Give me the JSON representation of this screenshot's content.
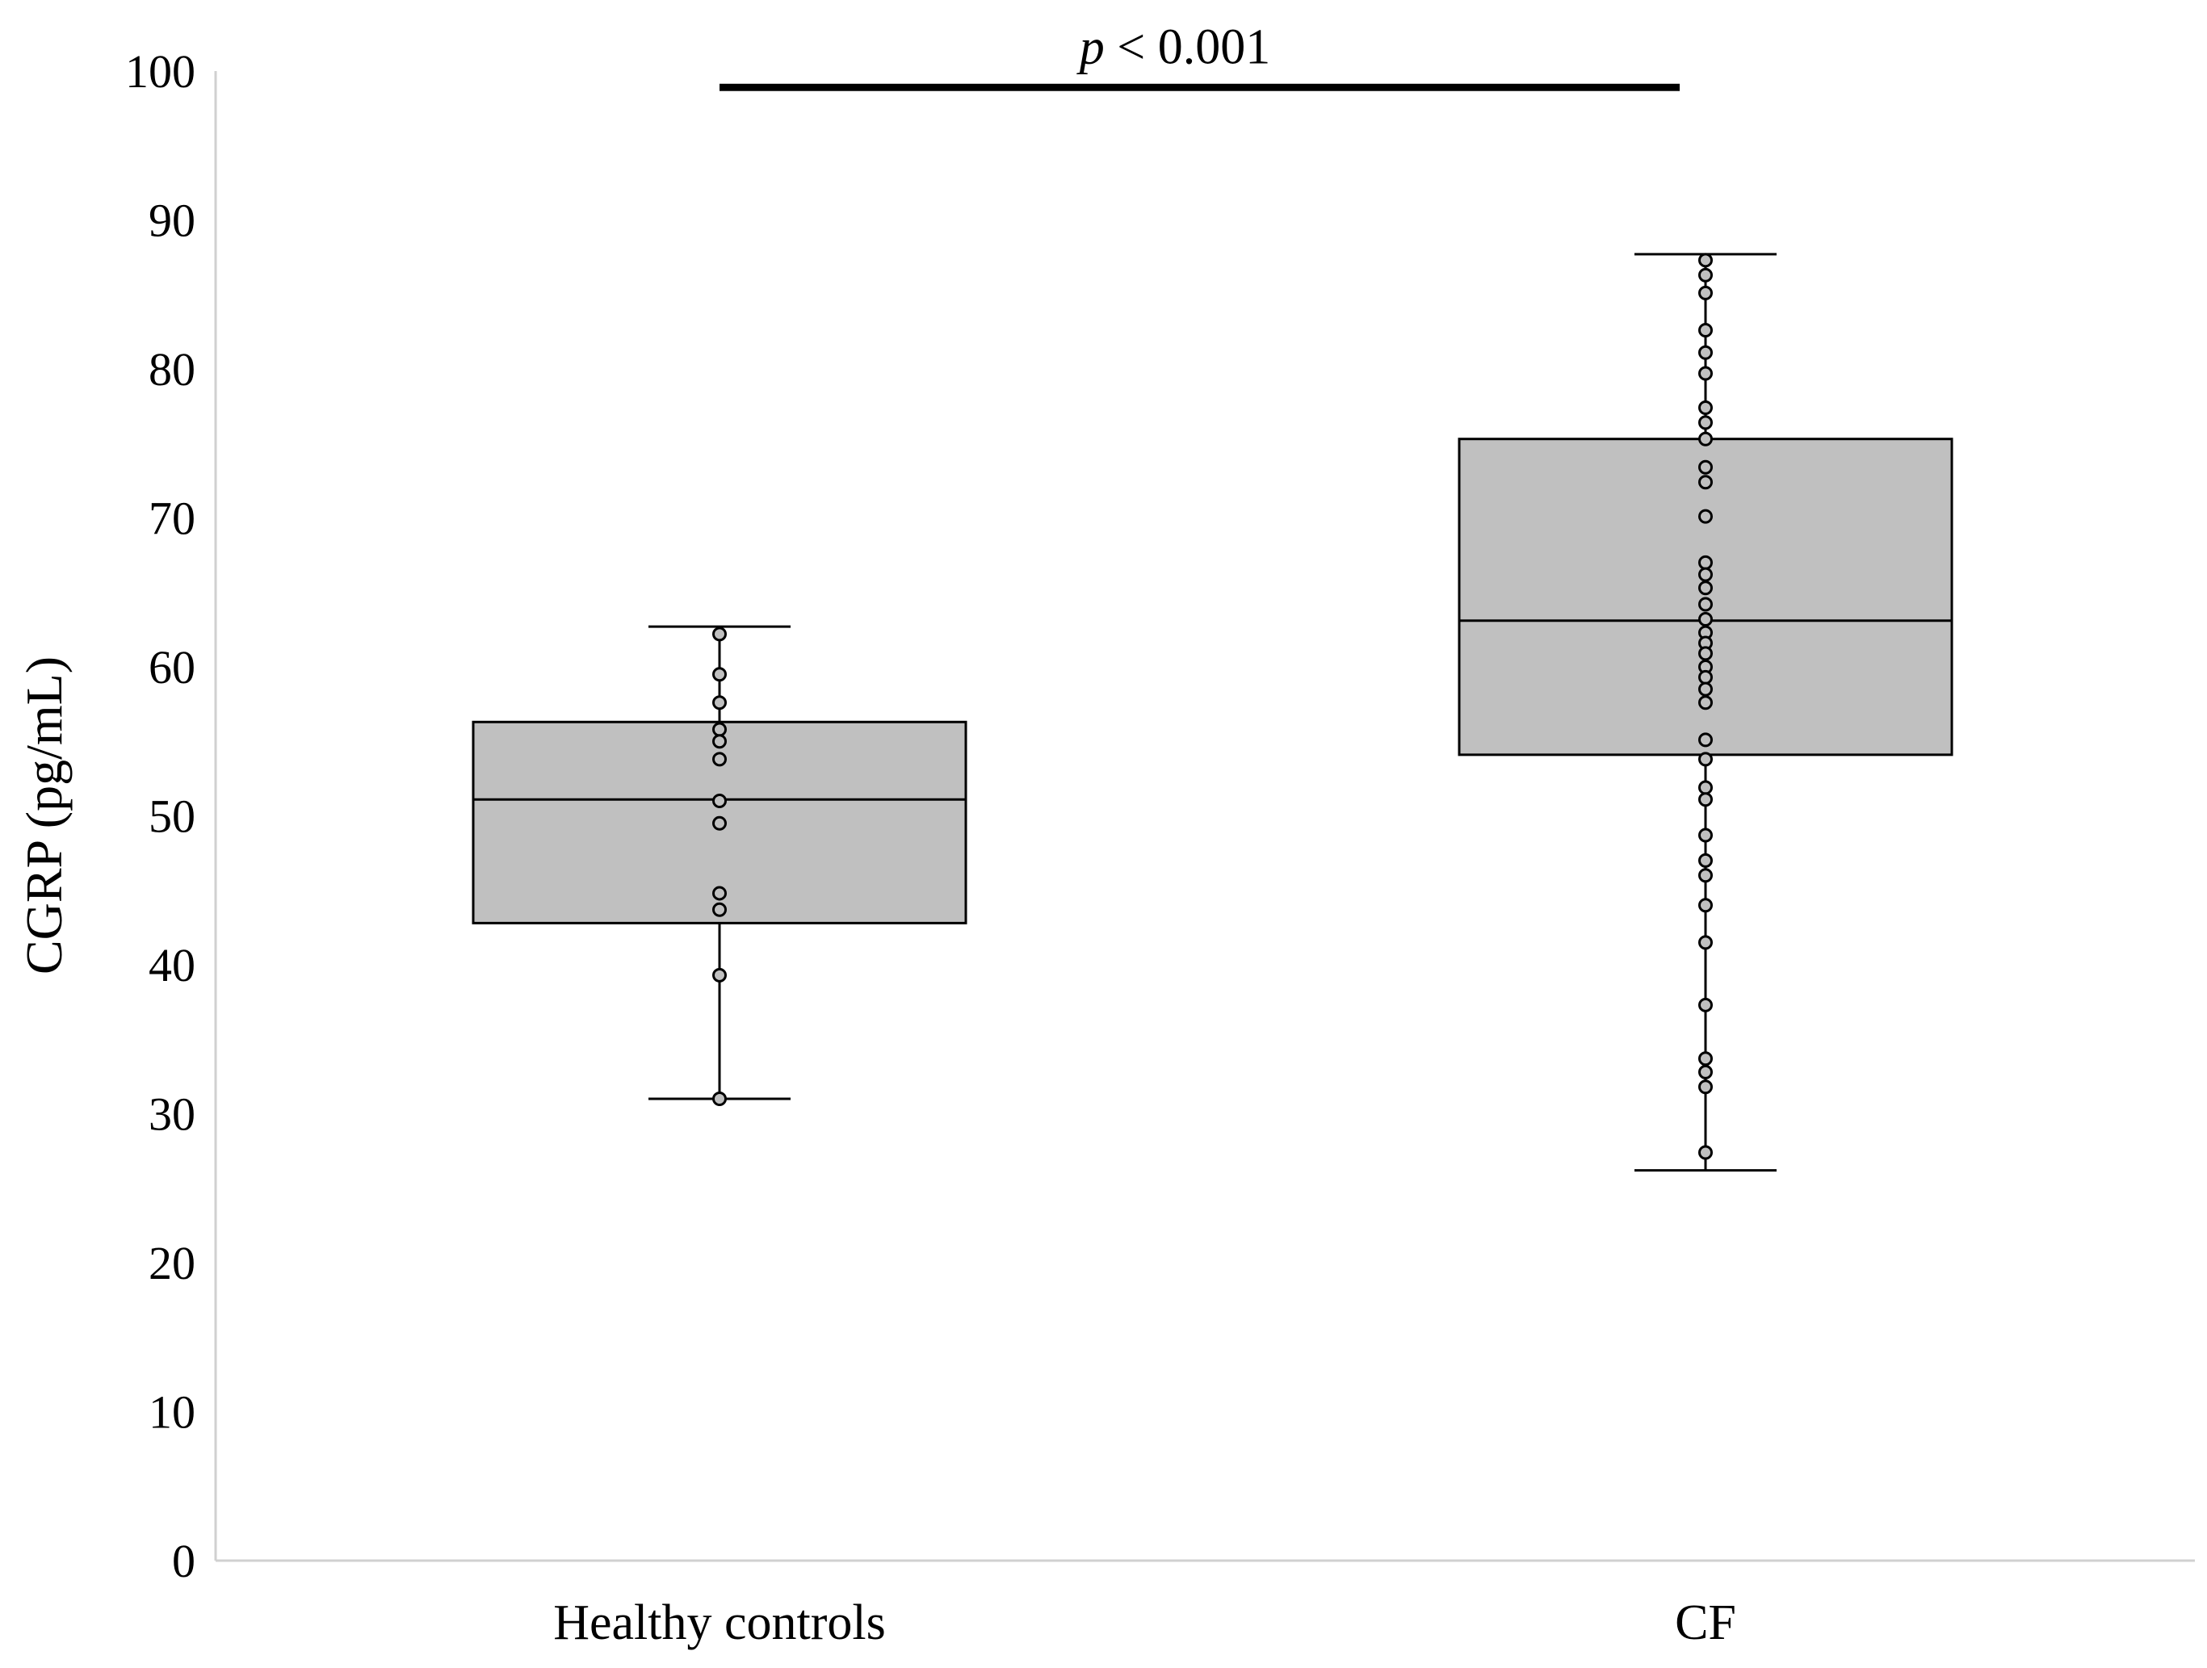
{
  "chart_data": {
    "type": "box",
    "ylabel": "CGRP (pg/mL)",
    "ylim": [
      0,
      100
    ],
    "yticks": [
      0,
      10,
      20,
      30,
      40,
      50,
      60,
      70,
      80,
      90,
      100
    ],
    "categories": [
      "Healthy controls",
      "CF"
    ],
    "box_fill": "#c0c0c0",
    "point_fill": "#c0c0c0",
    "groups": [
      {
        "category": "Healthy controls",
        "whisker_low": 31,
        "q1": 42.8,
        "median": 51.1,
        "q3": 56.3,
        "whisker_high": 62.7,
        "points": [
          62.2,
          59.5,
          57.6,
          55.8,
          55.0,
          53.8,
          51.0,
          49.5,
          44.8,
          43.7,
          39.3,
          31.0
        ]
      },
      {
        "category": "CF",
        "whisker_low": 26.2,
        "q1": 54.1,
        "median": 63.1,
        "q3": 75.3,
        "whisker_high": 87.7,
        "points": [
          87.3,
          86.3,
          85.1,
          82.6,
          81.1,
          79.7,
          77.4,
          76.4,
          75.3,
          73.4,
          72.4,
          70.1,
          67.0,
          66.2,
          65.3,
          64.2,
          63.2,
          62.3,
          61.6,
          60.9,
          60.0,
          59.3,
          58.5,
          57.6,
          55.1,
          53.8,
          51.9,
          51.1,
          48.7,
          47.0,
          46.0,
          44.0,
          41.5,
          37.3,
          33.7,
          32.8,
          31.8,
          27.4
        ]
      }
    ],
    "annotation": {
      "p_italic": "p",
      "text": " < 0.001",
      "bar_level": 98.9
    }
  }
}
